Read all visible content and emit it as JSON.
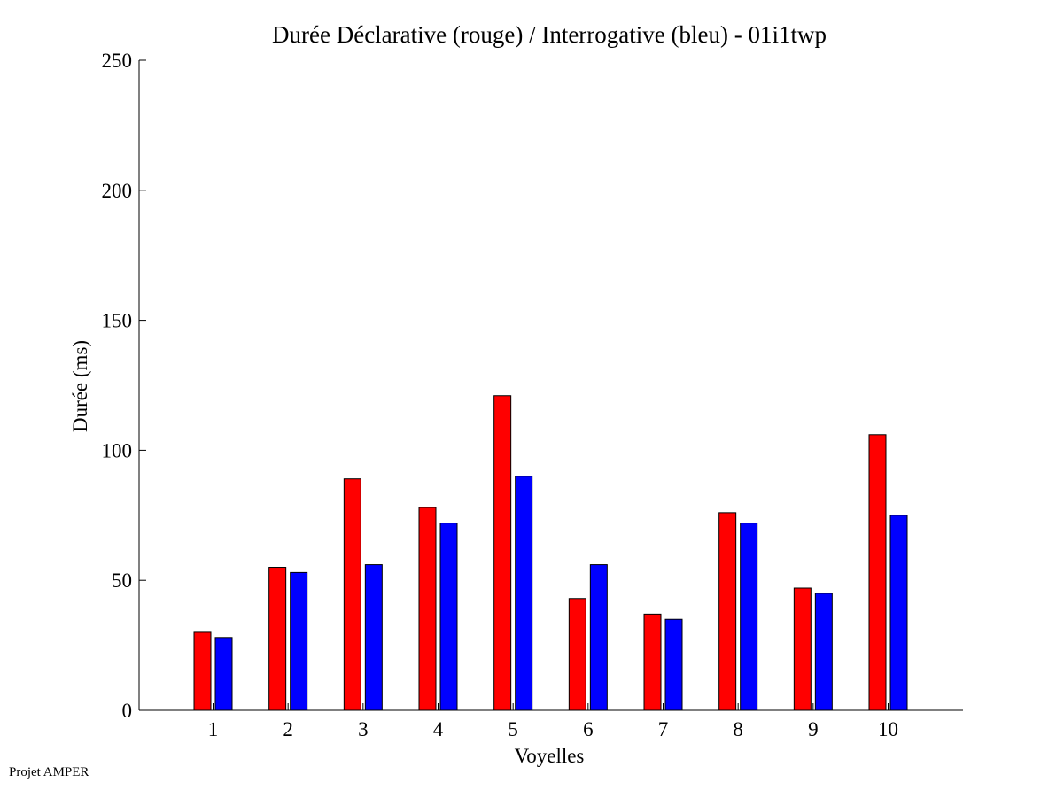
{
  "footer": {
    "text": "Projet AMPER"
  },
  "chart_data": {
    "type": "bar",
    "title": "Durée Déclarative (rouge) / Interrogative (bleu) - 01i1twp",
    "xlabel": "Voyelles",
    "ylabel": "Durée (ms)",
    "categories": [
      "1",
      "2",
      "3",
      "4",
      "5",
      "6",
      "7",
      "8",
      "9",
      "10"
    ],
    "ylim": [
      0,
      250
    ],
    "yticks": [
      "0",
      "50",
      "100",
      "150",
      "200",
      "250"
    ],
    "grid": false,
    "legend": "none",
    "series": [
      {
        "color": "#ff0000",
        "values": [
          30,
          55,
          89,
          78,
          121,
          43,
          37,
          76,
          47,
          106
        ]
      },
      {
        "color": "#0000ff",
        "values": [
          28,
          53,
          56,
          72,
          90,
          56,
          35,
          72,
          45,
          75
        ]
      }
    ]
  }
}
